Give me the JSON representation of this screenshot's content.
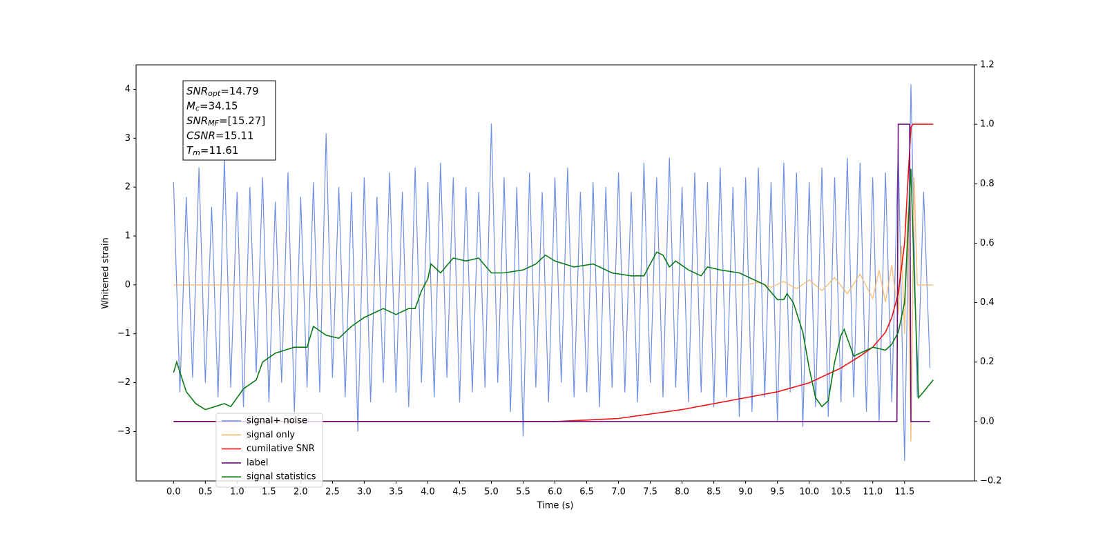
{
  "chart_data": {
    "type": "line",
    "xlabel": "Time (s)",
    "ylabel": "Whitened strain",
    "xlim": [
      -0.59,
      12.6
    ],
    "ylim": [
      -4.01,
      4.5
    ],
    "y2lim": [
      -0.2,
      1.2
    ],
    "xticks": [
      {
        "value": 0,
        "label": "0.0"
      },
      0.5,
      {
        "value": 1,
        "label": "1.0"
      },
      1.5,
      {
        "value": 2,
        "label": "2.0"
      },
      2.5,
      {
        "value": 3,
        "label": "3.0"
      },
      3.5,
      {
        "value": 4,
        "label": "4.0"
      },
      4.5,
      {
        "value": 5,
        "label": "5.0"
      },
      5.5,
      {
        "value": 6,
        "label": "6.0"
      },
      6.5,
      {
        "value": 7,
        "label": "7.0"
      },
      7.5,
      {
        "value": 8,
        "label": "8.0"
      },
      8.5,
      {
        "value": 9,
        "label": "9.0"
      },
      9.5,
      {
        "value": 10,
        "label": "10.0"
      },
      10.5,
      {
        "value": 11,
        "label": "11.0"
      },
      11.5
    ],
    "yticks": [
      {
        "value": -3,
        "label": "−3"
      },
      {
        "value": -2,
        "label": "−2"
      },
      {
        "value": -1,
        "label": "−1"
      },
      0,
      1,
      2,
      3,
      4
    ],
    "y2ticks": [
      {
        "value": -0.2,
        "label": "−0.2"
      },
      {
        "value": 0,
        "label": "0.0"
      },
      0.2,
      0.4,
      0.6,
      0.8,
      {
        "value": 1,
        "label": "1.0"
      },
      1.2
    ],
    "legend": "lower left",
    "annotation": [
      {
        "base": "SNR",
        "sub": "opt",
        "text": "=14.79"
      },
      {
        "base": "M",
        "sub": "c",
        "text": "=34.15"
      },
      {
        "base": "SNR",
        "sub": "MF",
        "text": "=[15.27]"
      },
      {
        "base": "CSNR",
        "sub": "",
        "text": "=15.11"
      },
      {
        "base": "T",
        "sub": "m",
        "text": "=11.61"
      }
    ],
    "series": [
      {
        "name": "signal+ noise",
        "color": "#6f8fe6",
        "axis": "y",
        "x": [
          0,
          0.1,
          0.2,
          0.3,
          0.4,
          0.5,
          0.6,
          0.7,
          0.8,
          0.9,
          1,
          1.1,
          1.2,
          1.3,
          1.4,
          1.5,
          1.6,
          1.7,
          1.8,
          1.9,
          2,
          2.1,
          2.2,
          2.3,
          2.4,
          2.5,
          2.6,
          2.7,
          2.8,
          2.9,
          3,
          3.1,
          3.2,
          3.3,
          3.4,
          3.5,
          3.6,
          3.7,
          3.8,
          3.9,
          4,
          4.1,
          4.2,
          4.3,
          4.4,
          4.5,
          4.6,
          4.7,
          4.8,
          4.9,
          5,
          5.1,
          5.2,
          5.3,
          5.4,
          5.5,
          5.6,
          5.7,
          5.8,
          5.9,
          6,
          6.1,
          6.2,
          6.3,
          6.4,
          6.5,
          6.6,
          6.7,
          6.8,
          6.9,
          7,
          7.1,
          7.2,
          7.3,
          7.4,
          7.5,
          7.6,
          7.7,
          7.8,
          7.9,
          8,
          8.1,
          8.2,
          8.3,
          8.4,
          8.5,
          8.6,
          8.7,
          8.8,
          8.9,
          9,
          9.1,
          9.2,
          9.3,
          9.4,
          9.5,
          9.6,
          9.7,
          9.8,
          9.9,
          10,
          10.1,
          10.2,
          10.3,
          10.4,
          10.5,
          10.6,
          10.7,
          10.8,
          10.9,
          11,
          11.1,
          11.2,
          11.3,
          11.4,
          11.5,
          11.6,
          11.7,
          11.8,
          11.9
        ],
        "values": [
          2.1,
          -2.2,
          1.8,
          -1.9,
          2.4,
          -2.0,
          1.6,
          -2.3,
          2.6,
          -2.1,
          1.9,
          -2.5,
          2.0,
          -1.8,
          2.2,
          -2.4,
          1.7,
          -2.0,
          2.3,
          -2.6,
          1.8,
          -2.1,
          2.1,
          -2.2,
          3.1,
          -1.9,
          2.0,
          -2.3,
          1.9,
          -3.0,
          2.2,
          -2.4,
          1.8,
          -2.0,
          2.3,
          -2.2,
          1.9,
          -2.5,
          2.4,
          -2.0,
          2.1,
          -2.3,
          2.5,
          -1.9,
          2.2,
          -2.4,
          2.0,
          -2.2,
          1.9,
          -2.1,
          3.3,
          -2.0,
          2.2,
          -2.6,
          2.0,
          -3.1,
          2.3,
          -2.1,
          1.9,
          -2.4,
          2.2,
          -2.0,
          2.4,
          -2.3,
          1.9,
          -2.2,
          2.1,
          -2.5,
          2.0,
          -2.1,
          2.3,
          -2.2,
          1.9,
          -2.4,
          2.5,
          -2.0,
          2.2,
          -2.3,
          2.6,
          -2.1,
          2.0,
          -2.4,
          2.3,
          -2.2,
          2.1,
          -2.5,
          2.4,
          -2.3,
          2.0,
          -2.7,
          2.2,
          -2.6,
          2.4,
          -2.3,
          2.1,
          -2.8,
          2.5,
          -2.2,
          2.3,
          -2.9,
          2.1,
          -2.5,
          2.4,
          -2.7,
          2.2,
          -2.4,
          2.6,
          -2.3,
          2.5,
          -2.6,
          2.2,
          -2.8,
          2.3,
          -2.4,
          2.8,
          -3.6,
          4.1,
          -2.3,
          1.9,
          -1.7
        ]
      },
      {
        "name": "signal only",
        "color": "#f5b66a",
        "axis": "y",
        "x": [
          0,
          9.0,
          9.2,
          9.4,
          9.6,
          9.8,
          10.0,
          10.2,
          10.4,
          10.6,
          10.8,
          11.0,
          11.1,
          11.2,
          11.3,
          11.4,
          11.45,
          11.5,
          11.55,
          11.6,
          11.65,
          11.7,
          11.95
        ],
        "values": [
          0,
          0,
          0.05,
          -0.05,
          0.07,
          -0.08,
          0.1,
          -0.12,
          0.15,
          -0.18,
          0.22,
          -0.28,
          0.3,
          -0.35,
          0.4,
          -0.6,
          0.8,
          -1.0,
          1.5,
          -3.2,
          2.2,
          0,
          0
        ]
      },
      {
        "name": "cumilative SNR",
        "color": "#ee1111",
        "axis": "y2",
        "x": [
          0,
          6.0,
          7.0,
          8.0,
          9.0,
          9.5,
          10.0,
          10.5,
          10.8,
          11.0,
          11.2,
          11.3,
          11.4,
          11.5,
          11.55,
          11.6,
          11.63,
          11.95
        ],
        "values": [
          0,
          0,
          0.01,
          0.04,
          0.08,
          0.1,
          0.13,
          0.18,
          0.22,
          0.25,
          0.3,
          0.35,
          0.43,
          0.6,
          0.8,
          0.99,
          1.0,
          1.0
        ]
      },
      {
        "name": "label",
        "color": "#6a0f7a",
        "axis": "y2",
        "x": [
          0,
          11.38,
          11.4,
          11.58,
          11.6,
          11.9
        ],
        "values": [
          0,
          0,
          1,
          1,
          0,
          0
        ]
      },
      {
        "name": "signal statistics",
        "color": "#0a7a14",
        "axis": "y2",
        "x": [
          0,
          0.05,
          0.2,
          0.35,
          0.5,
          0.8,
          0.9,
          1.1,
          1.3,
          1.4,
          1.6,
          1.9,
          2.1,
          2.2,
          2.4,
          2.6,
          2.8,
          3.0,
          3.2,
          3.3,
          3.5,
          3.7,
          3.8,
          3.9,
          4.0,
          4.05,
          4.2,
          4.4,
          4.6,
          4.8,
          5.0,
          5.2,
          5.5,
          5.7,
          5.85,
          6.0,
          6.3,
          6.6,
          6.9,
          7.2,
          7.4,
          7.6,
          7.7,
          7.8,
          7.9,
          8.1,
          8.3,
          8.4,
          8.6,
          8.9,
          9.1,
          9.3,
          9.5,
          9.6,
          9.65,
          9.75,
          9.9,
          10.0,
          10.1,
          10.2,
          10.3,
          10.4,
          10.5,
          10.55,
          10.7,
          10.9,
          11.0,
          11.2,
          11.3,
          11.4,
          11.5,
          11.6,
          11.65,
          11.72,
          11.8,
          11.95
        ],
        "values": [
          0.165,
          0.2,
          0.1,
          0.06,
          0.04,
          0.06,
          0.05,
          0.11,
          0.14,
          0.2,
          0.23,
          0.25,
          0.25,
          0.32,
          0.29,
          0.28,
          0.32,
          0.35,
          0.37,
          0.38,
          0.36,
          0.38,
          0.38,
          0.44,
          0.48,
          0.53,
          0.5,
          0.55,
          0.54,
          0.55,
          0.5,
          0.5,
          0.51,
          0.53,
          0.56,
          0.54,
          0.52,
          0.53,
          0.5,
          0.49,
          0.49,
          0.57,
          0.56,
          0.52,
          0.54,
          0.51,
          0.49,
          0.52,
          0.51,
          0.5,
          0.48,
          0.46,
          0.41,
          0.41,
          0.43,
          0.4,
          0.3,
          0.18,
          0.08,
          0.05,
          0.07,
          0.2,
          0.29,
          0.31,
          0.22,
          0.24,
          0.25,
          0.24,
          0.26,
          0.3,
          0.4,
          0.85,
          0.5,
          0.08,
          0.1,
          0.14
        ]
      }
    ]
  }
}
